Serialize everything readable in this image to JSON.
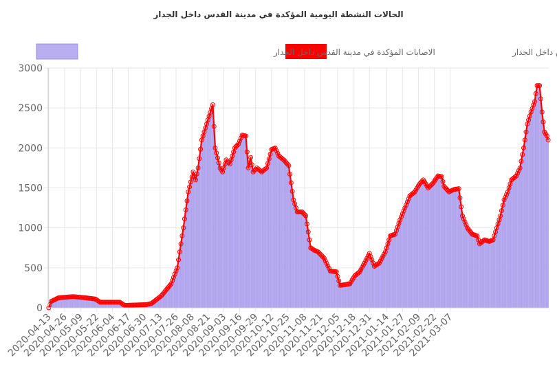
{
  "chart_data": {
    "type": "bar+line",
    "title": "الحالات النشطة اليومية المؤكدة في مدينة القدس داخل الجدار",
    "legend": [
      {
        "label": "الاصابات المؤكده في مدينة القدس داخل الجدار",
        "color": "#ff0000",
        "kind": "line"
      },
      {
        "label": "الاصابات المؤكدة في مدينة القدس داخل الجدار",
        "color": "#b9aef0",
        "kind": "bar"
      }
    ],
    "legend_position": "top",
    "ylim": [
      0,
      3000
    ],
    "yticks": [
      0,
      500,
      1000,
      1500,
      2000,
      2500,
      3000
    ],
    "xtick_labels": [
      "2020-04-13",
      "2020-04-26",
      "2020-05-09",
      "2020-05-22",
      "2020-06-04",
      "2020-06-17",
      "2020-06-30",
      "2020-07-13",
      "2020-07-26",
      "2020-08-08",
      "2020-08-21",
      "2020-09-03",
      "2020-09-16",
      "2020-09-29",
      "2020-10-12",
      "2020-10-25",
      "2020-11-08",
      "2020-11-21",
      "2020-12-05",
      "2020-12-18",
      "2020-12-31",
      "2021-01-14",
      "2021-01-27",
      "2021-02-09",
      "2021-02-22",
      "2021-03-07"
    ],
    "grid": true,
    "colors": {
      "line": "#ff0000",
      "bar": "#b9aef0",
      "bar_edge": "#9c8fe6",
      "grid": "#e6e6e6"
    },
    "series_keyframes": [
      [
        0,
        0
      ],
      [
        2,
        80
      ],
      [
        8,
        125
      ],
      [
        20,
        140
      ],
      [
        30,
        125
      ],
      [
        38,
        110
      ],
      [
        42,
        70
      ],
      [
        58,
        70
      ],
      [
        62,
        30
      ],
      [
        80,
        40
      ],
      [
        84,
        55
      ],
      [
        92,
        150
      ],
      [
        100,
        300
      ],
      [
        105,
        500
      ],
      [
        110,
        1000
      ],
      [
        114,
        1450
      ],
      [
        118,
        1700
      ],
      [
        120,
        1600
      ],
      [
        122,
        1750
      ],
      [
        125,
        2100
      ],
      [
        130,
        2350
      ],
      [
        134,
        2540
      ],
      [
        136,
        2000
      ],
      [
        140,
        1750
      ],
      [
        142,
        1700
      ],
      [
        145,
        1850
      ],
      [
        148,
        1800
      ],
      [
        152,
        2000
      ],
      [
        155,
        2050
      ],
      [
        158,
        2160
      ],
      [
        161,
        2150
      ],
      [
        163,
        1750
      ],
      [
        165,
        1880
      ],
      [
        167,
        1700
      ],
      [
        170,
        1750
      ],
      [
        174,
        1700
      ],
      [
        178,
        1750
      ],
      [
        182,
        1980
      ],
      [
        185,
        2000
      ],
      [
        188,
        1900
      ],
      [
        192,
        1850
      ],
      [
        196,
        1780
      ],
      [
        200,
        1350
      ],
      [
        203,
        1200
      ],
      [
        207,
        1200
      ],
      [
        210,
        1150
      ],
      [
        214,
        750
      ],
      [
        217,
        720
      ],
      [
        220,
        700
      ],
      [
        225,
        620
      ],
      [
        230,
        460
      ],
      [
        235,
        450
      ],
      [
        238,
        280
      ],
      [
        242,
        290
      ],
      [
        246,
        300
      ],
      [
        250,
        400
      ],
      [
        254,
        450
      ],
      [
        258,
        560
      ],
      [
        262,
        680
      ],
      [
        266,
        520
      ],
      [
        270,
        560
      ],
      [
        275,
        700
      ],
      [
        279,
        900
      ],
      [
        283,
        920
      ],
      [
        287,
        1100
      ],
      [
        291,
        1250
      ],
      [
        295,
        1400
      ],
      [
        299,
        1450
      ],
      [
        303,
        1550
      ],
      [
        306,
        1600
      ],
      [
        310,
        1500
      ],
      [
        314,
        1560
      ],
      [
        318,
        1650
      ],
      [
        321,
        1640
      ],
      [
        323,
        1520
      ],
      [
        327,
        1450
      ],
      [
        331,
        1480
      ],
      [
        335,
        1490
      ],
      [
        338,
        1150
      ],
      [
        342,
        1000
      ],
      [
        346,
        920
      ],
      [
        350,
        900
      ],
      [
        352,
        800
      ],
      [
        356,
        850
      ],
      [
        360,
        830
      ],
      [
        363,
        850
      ],
      [
        366,
        1000
      ],
      [
        369,
        1150
      ],
      [
        372,
        1350
      ],
      [
        375,
        1450
      ],
      [
        378,
        1600
      ],
      [
        382,
        1650
      ],
      [
        385,
        1750
      ],
      [
        388,
        2000
      ],
      [
        391,
        2300
      ],
      [
        394,
        2450
      ],
      [
        397,
        2580
      ],
      [
        399,
        2780
      ],
      [
        401,
        2780
      ],
      [
        403,
        2450
      ],
      [
        405,
        2200
      ],
      [
        407,
        2150
      ],
      [
        408,
        2100
      ]
    ]
  }
}
